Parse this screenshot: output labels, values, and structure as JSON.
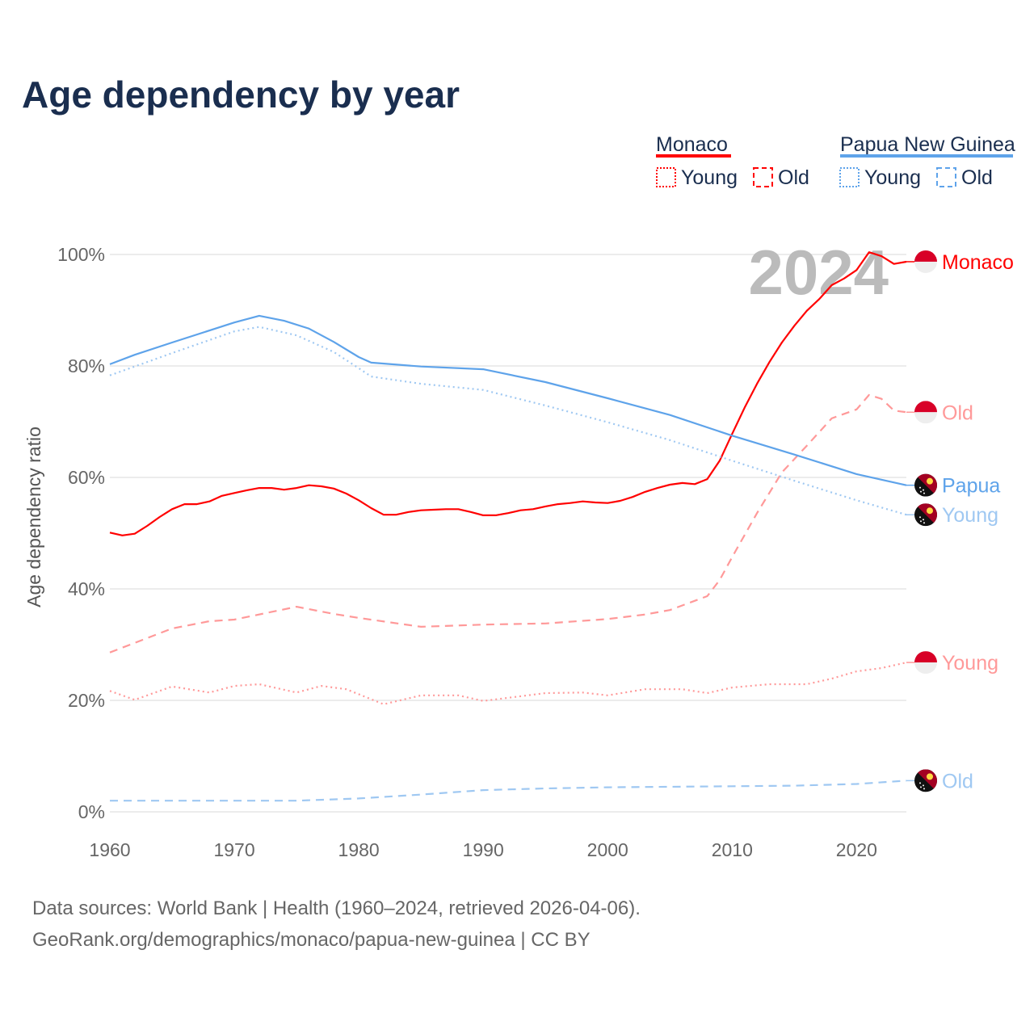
{
  "title": "Age dependency by year",
  "legend": {
    "groups": [
      {
        "name": "Monaco",
        "color": "#ff0000",
        "items": [
          "Young",
          "Old"
        ]
      },
      {
        "name": "Papua New Guinea",
        "color": "#5ea3ea",
        "items": [
          "Young",
          "Old"
        ]
      }
    ]
  },
  "year_label": "2024",
  "footer": {
    "line1": "Data sources: World Bank | Health (1960–2024, retrieved 2026-04-06).",
    "line2": "GeoRank.org/demographics/monaco/papua-new-guinea | CC BY"
  },
  "chart_data": {
    "type": "line",
    "title": "Age dependency by year",
    "xlabel": "",
    "ylabel": "Age dependency ratio",
    "xlim": [
      1960,
      2024
    ],
    "ylim": [
      0,
      100
    ],
    "xticks": [
      "1960",
      "1970",
      "1980",
      "1990",
      "2000",
      "2010",
      "2020"
    ],
    "yticks": [
      "0%",
      "20%",
      "40%",
      "60%",
      "80%",
      "100%"
    ],
    "grid": true,
    "series": [
      {
        "name": "Monaco",
        "end_label": "Monaco",
        "country": "monaco",
        "style": "solid",
        "color": "#ff0000",
        "x": [
          1960,
          1961,
          1962,
          1963,
          1964,
          1965,
          1966,
          1967,
          1968,
          1969,
          1970,
          1971,
          1972,
          1973,
          1974,
          1975,
          1976,
          1977,
          1978,
          1979,
          1980,
          1981,
          1982,
          1983,
          1984,
          1985,
          1986,
          1987,
          1988,
          1989,
          1990,
          1991,
          1992,
          1993,
          1994,
          1995,
          1996,
          1997,
          1998,
          1999,
          2000,
          2001,
          2002,
          2003,
          2004,
          2005,
          2006,
          2007,
          2008,
          2009,
          2010,
          2011,
          2012,
          2013,
          2014,
          2015,
          2016,
          2017,
          2018,
          2019,
          2020,
          2021,
          2022,
          2023,
          2024
        ],
        "y": [
          50.1,
          49.6,
          49.9,
          51.3,
          52.9,
          54.3,
          55.2,
          55.2,
          55.7,
          56.7,
          57.2,
          57.7,
          58.1,
          58.1,
          57.8,
          58.1,
          58.6,
          58.4,
          58.0,
          57.1,
          55.9,
          54.5,
          53.3,
          53.3,
          53.8,
          54.1,
          54.2,
          54.3,
          54.3,
          53.8,
          53.2,
          53.2,
          53.6,
          54.1,
          54.3,
          54.8,
          55.2,
          55.4,
          55.7,
          55.5,
          55.4,
          55.8,
          56.5,
          57.4,
          58.1,
          58.7,
          59.0,
          58.8,
          59.7,
          63.0,
          67.8,
          72.5,
          76.8,
          80.7,
          84.2,
          87.2,
          89.9,
          92.0,
          94.5,
          95.7,
          97.2,
          100.4,
          99.7,
          98.3,
          98.7
        ]
      },
      {
        "name": "Monaco Old",
        "end_label": "Old",
        "country": "monaco",
        "style": "dashed",
        "color": "#ff9999",
        "x": [
          1960,
          1965,
          1968,
          1970,
          1975,
          1978,
          1980,
          1985,
          1990,
          1995,
          2000,
          2003,
          2005,
          2008,
          2009,
          2010,
          2012,
          2014,
          2016,
          2018,
          2020,
          2021,
          2022,
          2023,
          2024
        ],
        "y": [
          28.6,
          32.9,
          34.2,
          34.5,
          36.8,
          35.5,
          34.8,
          33.2,
          33.6,
          33.8,
          34.6,
          35.4,
          36.2,
          38.7,
          41.6,
          45.7,
          53.6,
          60.9,
          65.7,
          70.6,
          72.2,
          74.8,
          74.1,
          72.0,
          71.7
        ]
      },
      {
        "name": "Monaco Young",
        "end_label": "Young",
        "country": "monaco",
        "style": "dotted",
        "color": "#ff9999",
        "x": [
          1960,
          1962,
          1965,
          1968,
          1970,
          1972,
          1975,
          1977,
          1979,
          1982,
          1985,
          1988,
          1990,
          1995,
          1998,
          2000,
          2003,
          2006,
          2008,
          2010,
          2013,
          2016,
          2018,
          2020,
          2022,
          2024
        ],
        "y": [
          21.7,
          20.1,
          22.5,
          21.4,
          22.6,
          22.9,
          21.4,
          22.6,
          22.0,
          19.3,
          20.9,
          20.9,
          19.9,
          21.3,
          21.4,
          20.9,
          22.0,
          22.0,
          21.3,
          22.3,
          22.9,
          22.9,
          23.9,
          25.2,
          25.8,
          26.8
        ]
      },
      {
        "name": "Papua New Guinea",
        "end_label": "Papua",
        "country": "png",
        "style": "solid",
        "color": "#5ea3ea",
        "x": [
          1960,
          1962,
          1965,
          1970,
          1972,
          1974,
          1976,
          1978,
          1980,
          1981,
          1985,
          1990,
          1995,
          2000,
          2005,
          2010,
          2015,
          2020,
          2024
        ],
        "y": [
          80.3,
          82.0,
          84.2,
          87.8,
          89.0,
          88.1,
          86.7,
          84.3,
          81.6,
          80.6,
          79.9,
          79.4,
          77.1,
          74.2,
          71.2,
          67.5,
          64.1,
          60.6,
          58.6
        ]
      },
      {
        "name": "Papua New Guinea Young",
        "end_label": "Young",
        "country": "png",
        "style": "dotted",
        "color": "#9fc8f2",
        "x": [
          1960,
          1965,
          1970,
          1972,
          1975,
          1978,
          1980,
          1981,
          1985,
          1990,
          1995,
          2000,
          2005,
          2010,
          2015,
          2020,
          2024
        ],
        "y": [
          78.3,
          82.3,
          86.2,
          87.0,
          85.5,
          82.5,
          79.6,
          78.1,
          76.8,
          75.7,
          72.9,
          69.9,
          66.7,
          63.0,
          59.4,
          55.9,
          53.3
        ]
      },
      {
        "name": "Papua New Guinea Old",
        "end_label": "Old",
        "country": "png",
        "style": "dashed",
        "color": "#9fc8f2",
        "x": [
          1960,
          1975,
          1980,
          1985,
          1990,
          1995,
          2000,
          2010,
          2015,
          2020,
          2024
        ],
        "y": [
          2.0,
          2.0,
          2.4,
          3.1,
          3.9,
          4.2,
          4.4,
          4.6,
          4.7,
          5.0,
          5.6
        ]
      }
    ]
  }
}
